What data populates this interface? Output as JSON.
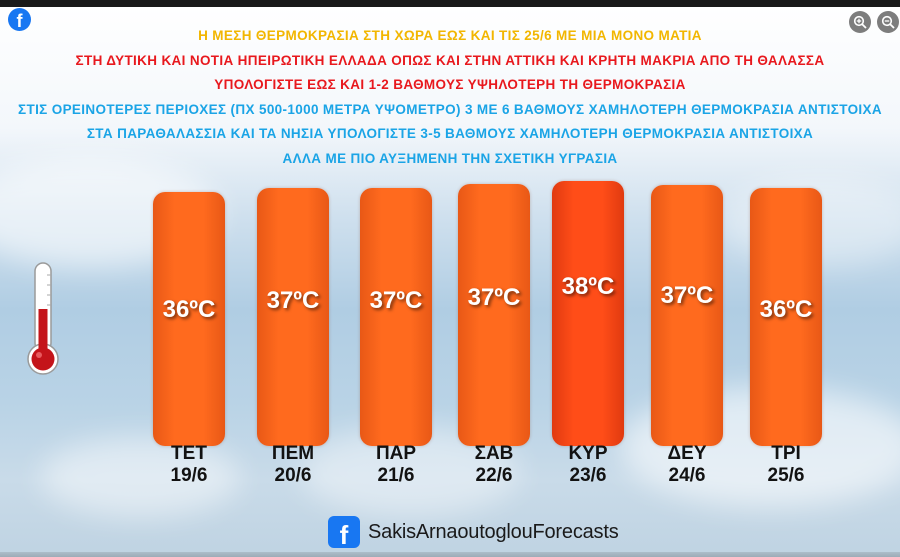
{
  "viewer": {
    "zoom_in_icon": "zoom-in-icon",
    "zoom_out_icon": "zoom-out-icon",
    "corner_logo_icon": "facebook-icon"
  },
  "headlines": [
    {
      "text": "Η ΜΕΣΗ ΘΕΡΜΟΚΡΑΣΙΑ ΣΤΗ ΧΩΡΑ ΕΩΣ ΚΑΙ ΤΙΣ 25/6 ΜΕ ΜΙΑ ΜΟΝΟ ΜΑΤΙΑ",
      "color": "#f2b600"
    },
    {
      "text": "ΣΤΗ ΔΥΤΙΚΗ ΚΑΙ ΝΟΤΙΑ ΗΠΕΙΡΩΤΙΚΗ ΕΛΛΑΔΑ ΟΠΩΣ ΚΑΙ ΣΤΗΝ ΑΤΤΙΚΗ ΚΑΙ ΚΡΗΤΗ ΜΑΚΡΙΑ ΑΠΟ ΤΗ ΘΑΛΑΣΣΑ",
      "color": "#e8181d"
    },
    {
      "text": "ΥΠΟΛΟΓΙΣΤΕ ΕΩΣ ΚΑΙ 1-2 ΒΑΘΜΟΥΣ ΥΨΗΛΟΤΕΡΗ ΤΗ ΘΕΡΜΟΚΡΑΣΙΑ",
      "color": "#e8181d"
    },
    {
      "text": "ΣΤΙΣ ΟΡΕΙΝΟΤΕΡΕΣ ΠΕΡΙΟΧΕΣ (ΠΧ 500-1000 ΜΕΤΡΑ ΥΨΟΜΕΤΡΟ) 3 ΜΕ 6 ΒΑΘΜΟΥΣ ΧΑΜΗΛΟΤΕΡΗ ΘΕΡΜΟΚΡΑΣΙΑ ΑΝΤΙΣΤΟΙΧΑ",
      "color": "#1aa4e6"
    },
    {
      "text": "ΣΤΑ ΠΑΡΑΘΑΛΑΣΣΙΑ ΚΑΙ ΤΑ ΝΗΣΙΑ ΥΠΟΛΟΓΙΣΤΕ 3-5 ΒΑΘΜΟΥΣ ΧΑΜΗΛΟΤΕΡΗ ΘΕΡΜΟΚΡΑΣΙΑ ΑΝΤΙΣΤΟΙΧΑ",
      "color": "#1aa4e6"
    },
    {
      "text": "ΑΛΛΑ ΜΕ ΠΙΟ ΑΥΞΗΜΕΝΗ ΤΗΝ ΣΧΕΤΙΚΗ ΥΓΡΑΣΙΑ",
      "color": "#1aa4e6"
    }
  ],
  "forecast": [
    {
      "day": "ΤΕΤ",
      "date": "19/6",
      "temp": "36ºC",
      "value": 36
    },
    {
      "day": "ΠΕΜ",
      "date": "20/6",
      "temp": "37ºC",
      "value": 37
    },
    {
      "day": "ΠΑΡ",
      "date": "21/6",
      "temp": "37ºC",
      "value": 37
    },
    {
      "day": "ΣΑΒ",
      "date": "22/6",
      "temp": "37ºC",
      "value": 37
    },
    {
      "day": "ΚΥΡ",
      "date": "23/6",
      "temp": "38ºC",
      "value": 38
    },
    {
      "day": "ΔΕΥ",
      "date": "24/6",
      "temp": "37ºC",
      "value": 37
    },
    {
      "day": "ΤΡΙ",
      "date": "25/6",
      "temp": "36ºC",
      "value": 36
    }
  ],
  "colors": {
    "bar": "#ff6a1e",
    "bar_hot": "#ff4d18",
    "facebook_blue": "#1877f2"
  },
  "branding": {
    "icon": "facebook-icon",
    "name": "SakisArnaoutoglouForecasts"
  },
  "decor": {
    "thermometer_icon": "thermometer-icon"
  }
}
